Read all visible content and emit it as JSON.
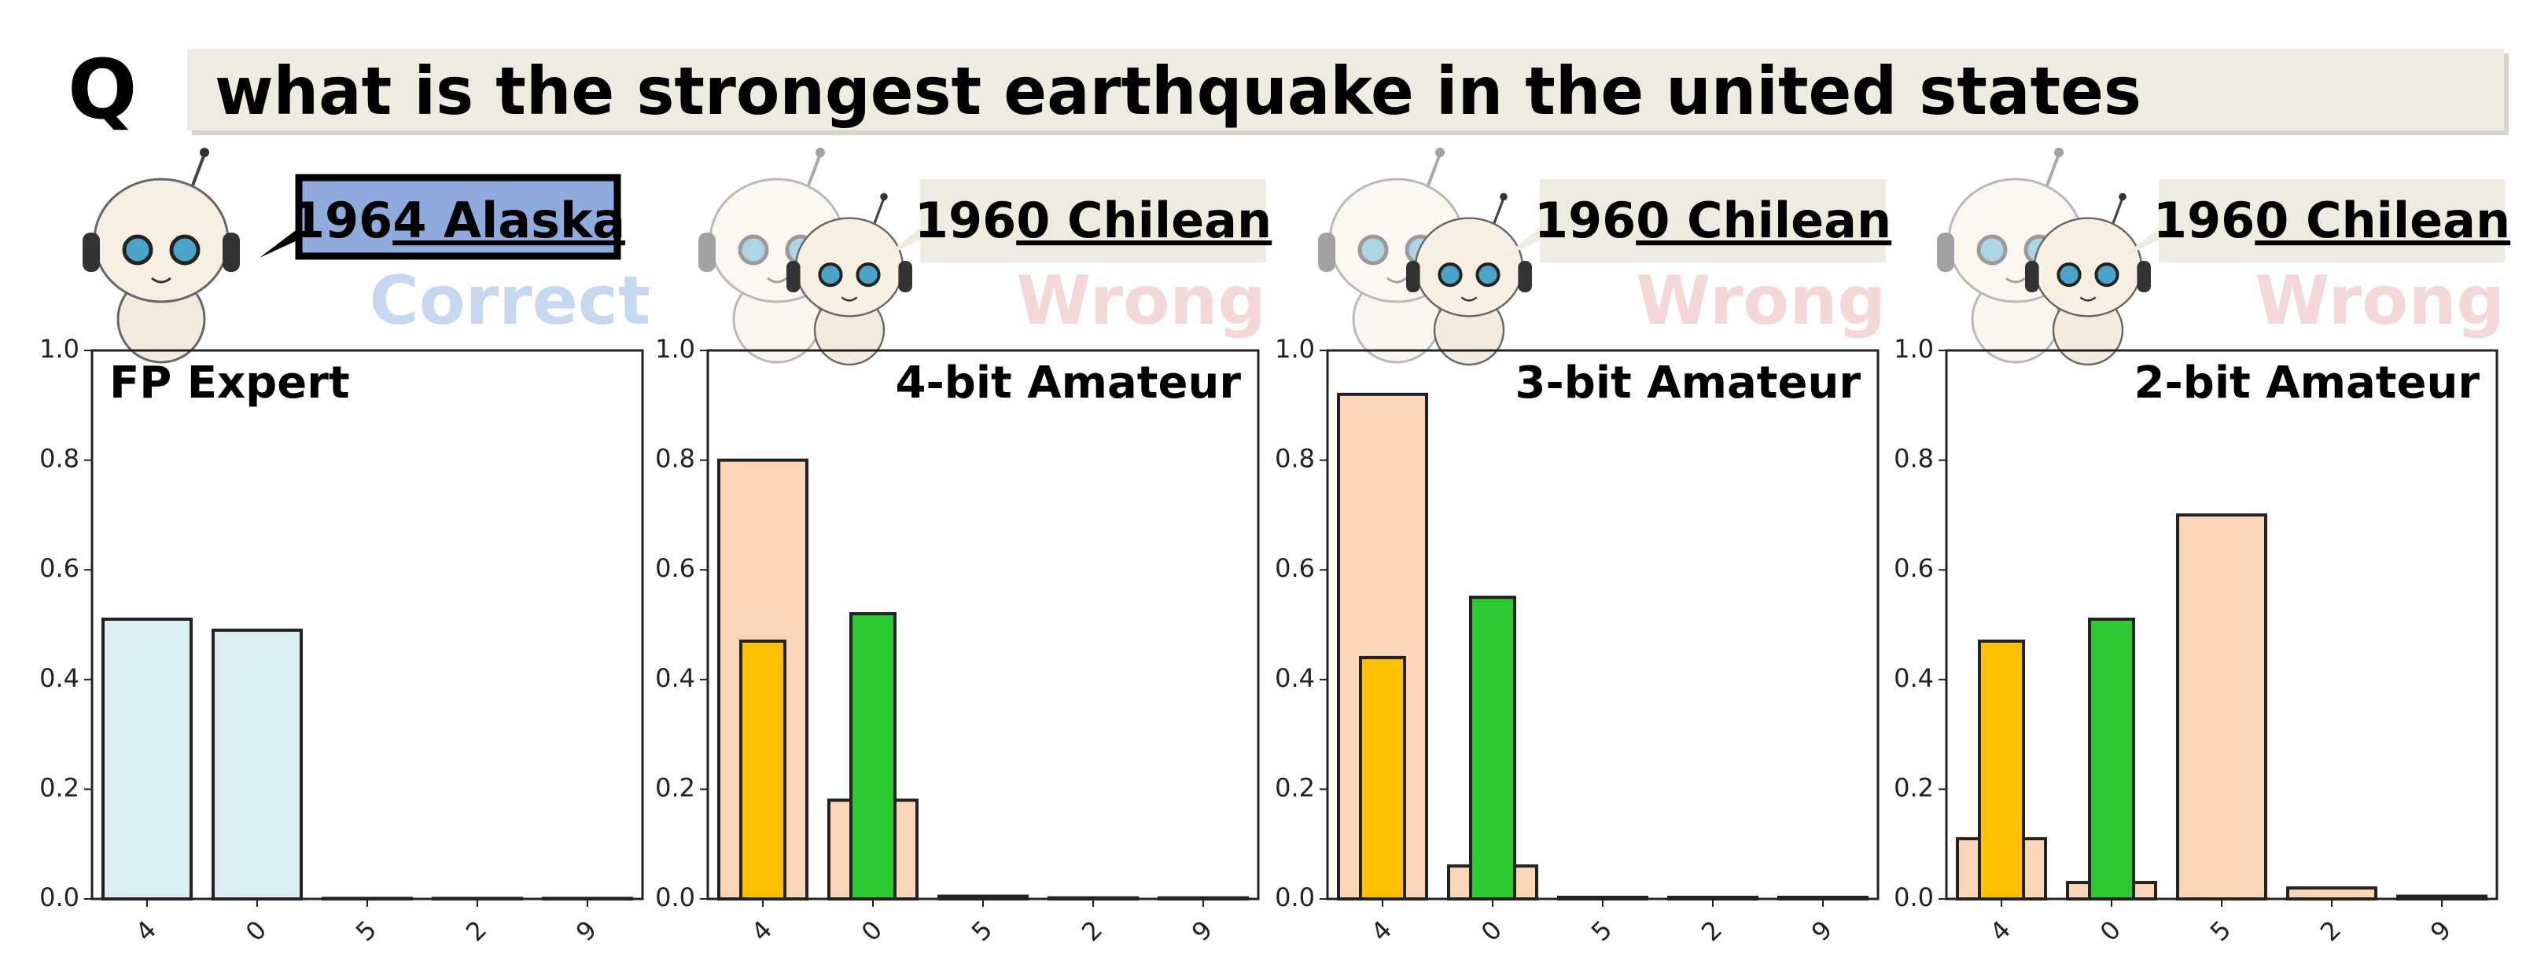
{
  "question": {
    "label": "Q",
    "text": "what is the strongest earthquake in the united states"
  },
  "chart_data": [
    {
      "type": "bar",
      "title": "FP Expert",
      "answer": [
        "196",
        "4 Alaska"
      ],
      "verdict": "Correct",
      "categories": [
        "4",
        "0",
        "5",
        "2",
        "9"
      ],
      "series": [
        {
          "color": "#dbeef4",
          "width": 0.8,
          "values": [
            0.51,
            0.49,
            0.001,
            0.001,
            0.001
          ]
        }
      ],
      "ylim": [
        0,
        1
      ],
      "yticks": [
        {
          "value": 0,
          "label": "0.0"
        },
        0.2,
        0.4,
        0.6,
        0.8,
        {
          "value": 1,
          "label": "1.0"
        }
      ]
    },
    {
      "type": "bar",
      "title": "4-bit Amateur",
      "answer": [
        "196",
        "0 Chilean"
      ],
      "verdict": "Wrong",
      "categories": [
        "4",
        "0",
        "5",
        "2",
        "9"
      ],
      "series": [
        {
          "color": "#fbd5b8",
          "width": 0.8,
          "values": [
            0.8,
            0.18,
            0.005,
            0.002,
            0.002
          ]
        },
        {
          "colors": [
            "#ffc000",
            "#2ec832"
          ],
          "width": 0.4,
          "values": [
            0.47,
            0.52,
            null,
            null,
            null
          ]
        }
      ],
      "ylim": [
        0,
        1
      ],
      "yticks": [
        {
          "value": 0,
          "label": "0.0"
        },
        0.2,
        0.4,
        0.6,
        0.8,
        {
          "value": 1,
          "label": "1.0"
        }
      ]
    },
    {
      "type": "bar",
      "title": "3-bit Amateur",
      "answer": [
        "196",
        "0 Chilean"
      ],
      "verdict": "Wrong",
      "categories": [
        "4",
        "0",
        "5",
        "2",
        "9"
      ],
      "series": [
        {
          "color": "#fbd5b8",
          "width": 0.8,
          "values": [
            0.92,
            0.06,
            0.003,
            0.003,
            0.003
          ]
        },
        {
          "colors": [
            "#ffc000",
            "#2ec832"
          ],
          "width": 0.4,
          "values": [
            0.44,
            0.55,
            null,
            null,
            null
          ]
        }
      ],
      "ylim": [
        0,
        1
      ],
      "yticks": [
        {
          "value": 0,
          "label": "0.0"
        },
        0.2,
        0.4,
        0.6,
        0.8,
        {
          "value": 1,
          "label": "1.0"
        }
      ]
    },
    {
      "type": "bar",
      "title": "2-bit Amateur",
      "answer": [
        "196",
        "0 Chilean"
      ],
      "verdict": "Wrong",
      "categories": [
        "4",
        "0",
        "5",
        "2",
        "9"
      ],
      "series": [
        {
          "color": "#fbd5b8",
          "width": 0.8,
          "values": [
            0.11,
            0.03,
            0.7,
            0.02,
            0.005
          ]
        },
        {
          "colors": [
            "#ffc000",
            "#2ec832"
          ],
          "width": 0.4,
          "values": [
            0.47,
            0.51,
            null,
            null,
            null
          ]
        }
      ],
      "ylim": [
        0,
        1
      ],
      "yticks": [
        {
          "value": 0,
          "label": "0.0"
        },
        0.2,
        0.4,
        0.6,
        0.8,
        {
          "value": 1,
          "label": "1.0"
        }
      ]
    }
  ]
}
